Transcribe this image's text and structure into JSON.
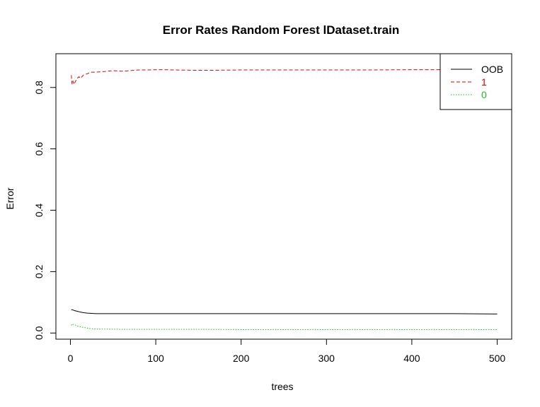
{
  "chart_data": {
    "type": "line",
    "title": "Error Rates Random Forest lDataset.train",
    "xlabel": "trees",
    "ylabel": "Error",
    "xlim": [
      -17,
      517
    ],
    "ylim": [
      -0.02,
      0.91
    ],
    "x_ticks": [
      0,
      100,
      200,
      300,
      400,
      500
    ],
    "x_tick_labels": [
      "0",
      "100",
      "200",
      "300",
      "400",
      "500"
    ],
    "y_ticks": [
      0.0,
      0.2,
      0.4,
      0.6,
      0.8
    ],
    "y_tick_labels": [
      "0.0",
      "0.2",
      "0.4",
      "0.6",
      "0.8"
    ],
    "grid": false,
    "legend_position": "top-right",
    "series": [
      {
        "name": "OOB",
        "color": "#000000",
        "dash": "solid",
        "x": [
          1,
          2,
          3,
          5,
          8,
          12,
          16,
          20,
          25,
          30,
          40,
          50,
          60,
          80,
          100,
          150,
          200,
          250,
          300,
          350,
          400,
          450,
          500
        ],
        "y": [
          0.075,
          0.076,
          0.075,
          0.073,
          0.071,
          0.068,
          0.066,
          0.065,
          0.064,
          0.063,
          0.063,
          0.063,
          0.063,
          0.063,
          0.063,
          0.063,
          0.063,
          0.063,
          0.063,
          0.063,
          0.063,
          0.063,
          0.062
        ]
      },
      {
        "name": "1",
        "color": "#df0000",
        "dash": "dashed",
        "x": [
          1,
          2,
          3,
          4,
          6,
          8,
          10,
          12,
          15,
          20,
          25,
          30,
          40,
          50,
          60,
          70,
          80,
          90,
          100,
          110,
          120,
          150,
          160,
          200,
          250,
          300,
          350,
          400,
          450,
          500
        ],
        "y": [
          0.84,
          0.81,
          0.82,
          0.81,
          0.82,
          0.83,
          0.835,
          0.83,
          0.84,
          0.845,
          0.85,
          0.85,
          0.852,
          0.855,
          0.853,
          0.855,
          0.857,
          0.857,
          0.858,
          0.858,
          0.857,
          0.856,
          0.856,
          0.857,
          0.857,
          0.857,
          0.857,
          0.858,
          0.858,
          0.857
        ]
      },
      {
        "name": "0",
        "color": "#22b922",
        "dash": "dotted",
        "x": [
          1,
          2,
          3,
          5,
          8,
          12,
          16,
          20,
          25,
          30,
          40,
          60,
          100,
          150,
          200,
          300,
          400,
          500
        ],
        "y": [
          0.025,
          0.03,
          0.028,
          0.027,
          0.023,
          0.02,
          0.018,
          0.016,
          0.014,
          0.013,
          0.013,
          0.012,
          0.012,
          0.012,
          0.011,
          0.011,
          0.011,
          0.011
        ]
      }
    ]
  }
}
